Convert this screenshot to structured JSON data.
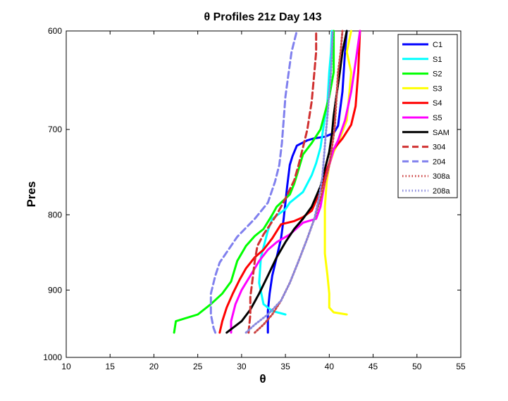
{
  "chart_data": {
    "type": "line",
    "title": "θ Profiles 21z Day 143",
    "xlabel": "θ",
    "ylabel": "Pres",
    "xlim": [
      10,
      55
    ],
    "ylim": [
      600,
      1000
    ],
    "y_reversed": true,
    "y_scale": "log",
    "grid": false,
    "legend_position": "top-right",
    "x_ticks": [
      "10",
      "15",
      "20",
      "25",
      "30",
      "35",
      "40",
      "45",
      "50",
      "55"
    ],
    "y_ticks": [
      "600",
      "700",
      "800",
      "900",
      "1000"
    ],
    "series": [
      {
        "name": "C1",
        "color": "#0000ff",
        "dash": "solid",
        "points": [
          [
            33.0,
            962
          ],
          [
            33.0,
            930
          ],
          [
            33.2,
            905
          ],
          [
            33.5,
            880
          ],
          [
            34.0,
            855
          ],
          [
            34.5,
            830
          ],
          [
            34.8,
            805
          ],
          [
            35.0,
            785
          ],
          [
            35.2,
            765
          ],
          [
            35.5,
            740
          ],
          [
            35.8,
            730
          ],
          [
            36.3,
            718
          ],
          [
            37.5,
            712
          ],
          [
            38.2,
            710
          ],
          [
            39.5,
            708
          ],
          [
            40.5,
            704
          ],
          [
            41.0,
            696
          ],
          [
            41.5,
            660
          ],
          [
            41.8,
            620
          ],
          [
            42.0,
            600
          ]
        ]
      },
      {
        "name": "S1",
        "color": "#00ffff",
        "dash": "solid",
        "points": [
          [
            35.0,
            935
          ],
          [
            33.5,
            930
          ],
          [
            32.5,
            920
          ],
          [
            32.0,
            890
          ],
          [
            32.2,
            855
          ],
          [
            33.0,
            820
          ],
          [
            33.5,
            805
          ],
          [
            35.0,
            793
          ],
          [
            35.5,
            785
          ],
          [
            37.0,
            772
          ],
          [
            38.0,
            752
          ],
          [
            38.5,
            738
          ],
          [
            39.0,
            720
          ],
          [
            39.3,
            700
          ],
          [
            39.8,
            670
          ],
          [
            40.0,
            640
          ],
          [
            40.2,
            620
          ],
          [
            40.3,
            600
          ]
        ]
      },
      {
        "name": "S2",
        "color": "#00ff00",
        "dash": "solid",
        "points": [
          [
            22.3,
            962
          ],
          [
            22.5,
            945
          ],
          [
            25.0,
            935
          ],
          [
            26.5,
            920
          ],
          [
            27.8,
            905
          ],
          [
            28.8,
            888
          ],
          [
            29.5,
            860
          ],
          [
            30.5,
            840
          ],
          [
            31.5,
            827
          ],
          [
            32.5,
            818
          ],
          [
            33.5,
            800
          ],
          [
            34.0,
            790
          ],
          [
            35.5,
            775
          ],
          [
            36.0,
            762
          ],
          [
            36.5,
            745
          ],
          [
            37.0,
            728
          ],
          [
            38.0,
            715
          ],
          [
            39.0,
            700
          ],
          [
            40.0,
            665
          ],
          [
            40.5,
            640
          ],
          [
            40.5,
            600
          ]
        ]
      },
      {
        "name": "S3",
        "color": "#ffff00",
        "dash": "solid",
        "points": [
          [
            42.0,
            935
          ],
          [
            40.5,
            932
          ],
          [
            40.0,
            925
          ],
          [
            40.0,
            905
          ],
          [
            39.8,
            880
          ],
          [
            39.5,
            850
          ],
          [
            39.5,
            820
          ],
          [
            39.5,
            790
          ],
          [
            39.7,
            760
          ],
          [
            40.0,
            740
          ],
          [
            40.5,
            725
          ],
          [
            41.0,
            715
          ],
          [
            42.0,
            690
          ],
          [
            42.3,
            660
          ],
          [
            42.5,
            640
          ],
          [
            42.0,
            620
          ],
          [
            42.5,
            600
          ]
        ]
      },
      {
        "name": "S4",
        "color": "#ff0000",
        "dash": "solid",
        "points": [
          [
            27.5,
            962
          ],
          [
            27.8,
            945
          ],
          [
            28.3,
            925
          ],
          [
            29.0,
            905
          ],
          [
            29.8,
            885
          ],
          [
            30.5,
            870
          ],
          [
            31.5,
            855
          ],
          [
            32.5,
            845
          ],
          [
            33.5,
            830
          ],
          [
            34.5,
            812
          ],
          [
            36.0,
            808
          ],
          [
            37.0,
            803
          ],
          [
            38.0,
            795
          ],
          [
            39.0,
            770
          ],
          [
            39.5,
            752
          ],
          [
            40.0,
            738
          ],
          [
            40.5,
            722
          ],
          [
            41.5,
            710
          ],
          [
            42.5,
            695
          ],
          [
            43.0,
            675
          ],
          [
            43.3,
            640
          ],
          [
            43.5,
            600
          ]
        ]
      },
      {
        "name": "S5",
        "color": "#ff00ff",
        "dash": "solid",
        "points": [
          [
            28.8,
            962
          ],
          [
            28.8,
            945
          ],
          [
            29.3,
            920
          ],
          [
            30.0,
            900
          ],
          [
            31.0,
            880
          ],
          [
            32.0,
            860
          ],
          [
            33.0,
            845
          ],
          [
            34.0,
            835
          ],
          [
            35.5,
            825
          ],
          [
            37.0,
            810
          ],
          [
            38.5,
            805
          ],
          [
            39.0,
            790
          ],
          [
            39.5,
            760
          ],
          [
            40.0,
            740
          ],
          [
            40.5,
            722
          ],
          [
            41.0,
            712
          ],
          [
            41.8,
            690
          ],
          [
            42.5,
            660
          ],
          [
            43.0,
            630
          ],
          [
            43.5,
            600
          ]
        ]
      },
      {
        "name": "SAM",
        "color": "#000000",
        "dash": "solid",
        "points": [
          [
            28.3,
            962
          ],
          [
            30.0,
            945
          ],
          [
            31.0,
            928
          ],
          [
            32.0,
            905
          ],
          [
            33.0,
            880
          ],
          [
            34.0,
            855
          ],
          [
            35.0,
            835
          ],
          [
            36.0,
            818
          ],
          [
            37.0,
            805
          ],
          [
            38.0,
            790
          ],
          [
            39.0,
            765
          ],
          [
            39.5,
            745
          ],
          [
            40.0,
            725
          ],
          [
            40.3,
            705
          ],
          [
            40.5,
            685
          ],
          [
            40.8,
            665
          ],
          [
            41.2,
            640
          ],
          [
            41.5,
            620
          ],
          [
            42.0,
            600
          ]
        ]
      },
      {
        "name": "304",
        "color": "#d03030",
        "dash": "dashed",
        "points": [
          [
            30.8,
            962
          ],
          [
            31.0,
            935
          ],
          [
            31.0,
            910
          ],
          [
            31.3,
            880
          ],
          [
            31.5,
            860
          ],
          [
            31.8,
            840
          ],
          [
            32.5,
            825
          ],
          [
            34.0,
            800
          ],
          [
            35.0,
            780
          ],
          [
            36.0,
            758
          ],
          [
            36.5,
            740
          ],
          [
            37.0,
            720
          ],
          [
            37.5,
            700
          ],
          [
            38.0,
            670
          ],
          [
            38.3,
            640
          ],
          [
            38.5,
            620
          ],
          [
            38.5,
            600
          ]
        ]
      },
      {
        "name": "204",
        "color": "#8080ee",
        "dash": "dashed",
        "points": [
          [
            27.0,
            962
          ],
          [
            26.8,
            955
          ],
          [
            26.5,
            935
          ],
          [
            26.5,
            905
          ],
          [
            27.0,
            880
          ],
          [
            27.5,
            862
          ],
          [
            28.5,
            845
          ],
          [
            29.5,
            828
          ],
          [
            31.5,
            805
          ],
          [
            33.0,
            785
          ],
          [
            33.8,
            760
          ],
          [
            34.3,
            740
          ],
          [
            34.6,
            715
          ],
          [
            34.8,
            690
          ],
          [
            35.0,
            665
          ],
          [
            35.3,
            645
          ],
          [
            35.7,
            620
          ],
          [
            36.3,
            600
          ]
        ]
      },
      {
        "name": "308a",
        "color": "#cc4444",
        "dash": "dotted",
        "points": [
          [
            31.5,
            962
          ],
          [
            32.5,
            950
          ],
          [
            33.5,
            935
          ],
          [
            34.5,
            915
          ],
          [
            35.5,
            890
          ],
          [
            36.5,
            860
          ],
          [
            37.5,
            830
          ],
          [
            38.3,
            805
          ],
          [
            39.0,
            780
          ],
          [
            39.5,
            760
          ],
          [
            40.0,
            740
          ],
          [
            40.3,
            720
          ],
          [
            40.6,
            700
          ],
          [
            40.8,
            670
          ],
          [
            41.0,
            640
          ],
          [
            41.3,
            620
          ],
          [
            41.5,
            600
          ]
        ]
      },
      {
        "name": "208a",
        "color": "#8888dd",
        "dash": "dotted",
        "points": [
          [
            30.5,
            962
          ],
          [
            31.5,
            950
          ],
          [
            33.0,
            935
          ],
          [
            34.5,
            915
          ],
          [
            35.5,
            890
          ],
          [
            36.5,
            860
          ],
          [
            37.5,
            830
          ],
          [
            38.3,
            805
          ],
          [
            38.8,
            780
          ],
          [
            39.2,
            755
          ],
          [
            39.4,
            730
          ],
          [
            39.6,
            705
          ],
          [
            39.8,
            685
          ],
          [
            40.0,
            660
          ],
          [
            40.2,
            640
          ],
          [
            40.4,
            600
          ]
        ]
      }
    ]
  }
}
